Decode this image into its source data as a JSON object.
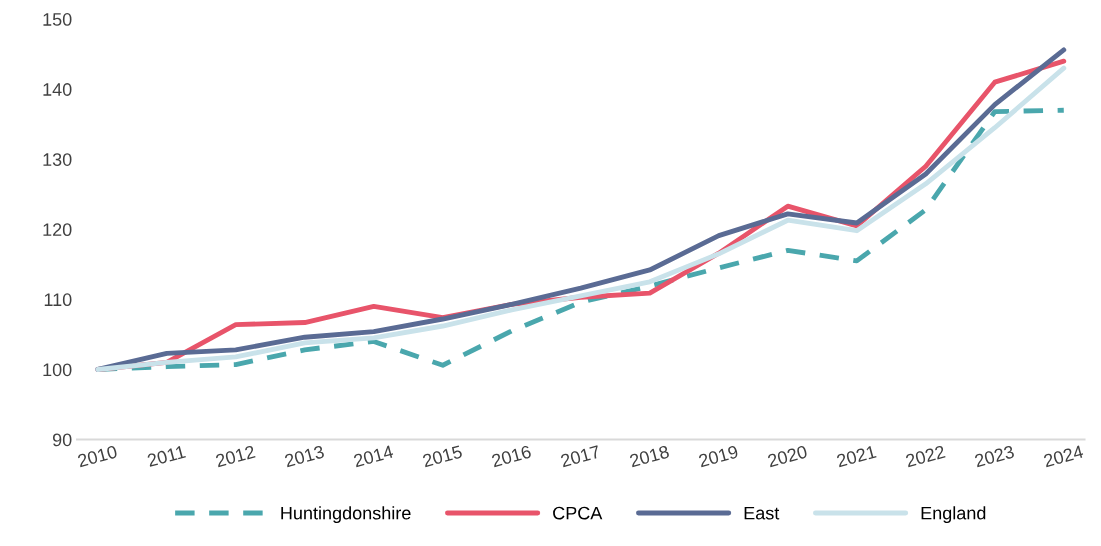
{
  "chart_data": {
    "type": "line",
    "categories": [
      "2010",
      "2011",
      "2012",
      "2013",
      "2014",
      "2015",
      "2016",
      "2017",
      "2018",
      "2019",
      "2020",
      "2021",
      "2022",
      "2023",
      "2024"
    ],
    "series": [
      {
        "name": "Huntingdonshire",
        "color": "#4aa7ad",
        "line_style": "dashed",
        "values": [
          100,
          100.4,
          100.7,
          102.8,
          104,
          100.6,
          105.5,
          109.6,
          111.9,
          114.5,
          117,
          115.5,
          122.8,
          136.8,
          137
        ]
      },
      {
        "name": "CPCA",
        "color": "#e8546a",
        "values": [
          100,
          101,
          106.4,
          106.7,
          109,
          107.4,
          109.3,
          110.3,
          110.9,
          116.6,
          123.3,
          120.5,
          129,
          141,
          144
        ]
      },
      {
        "name": "East",
        "color": "#5a6b94",
        "values": [
          100,
          102.3,
          102.8,
          104.6,
          105.4,
          107.2,
          109.3,
          111.6,
          114.2,
          119.1,
          122.2,
          120.9,
          127.9,
          137.8,
          145.6
        ]
      },
      {
        "name": "England",
        "color": "#c9e2ea",
        "values": [
          100,
          101,
          101.8,
          103.8,
          104.5,
          106.2,
          108.5,
          110.5,
          112.5,
          116.5,
          121.3,
          119.8,
          126.5,
          134.5,
          143
        ]
      }
    ],
    "ylim": [
      90,
      150
    ],
    "yticks": [
      90,
      100,
      110,
      120,
      130,
      140,
      150
    ],
    "grid": false,
    "legend": "bottom",
    "line_style": "solid",
    "marker": "none"
  }
}
